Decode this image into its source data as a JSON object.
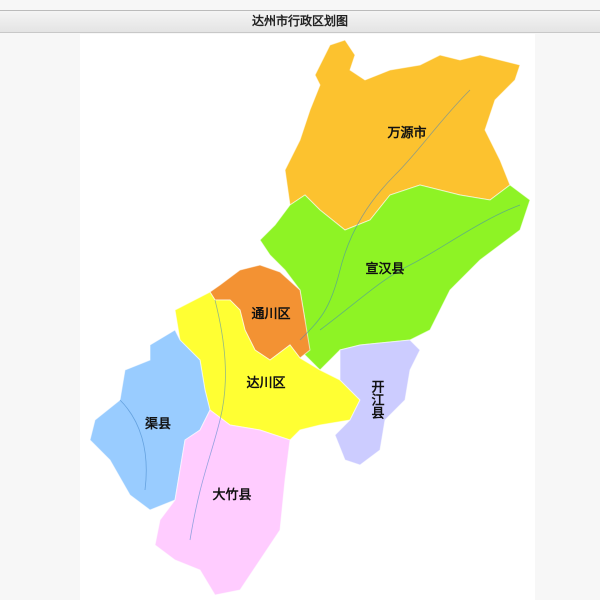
{
  "title": "达州市行政区划图",
  "regions": [
    {
      "name": "万源市",
      "color": "#FCC22F"
    },
    {
      "name": "宣汉县",
      "color": "#8EF325"
    },
    {
      "name": "通川区",
      "color": "#F39233"
    },
    {
      "name": "达川区",
      "color": "#FFFF33"
    },
    {
      "name": "开江县",
      "color": "#CCCCFF"
    },
    {
      "name": "渠县",
      "color": "#99CCFF"
    },
    {
      "name": "大竹县",
      "color": "#FFCCFF"
    }
  ]
}
